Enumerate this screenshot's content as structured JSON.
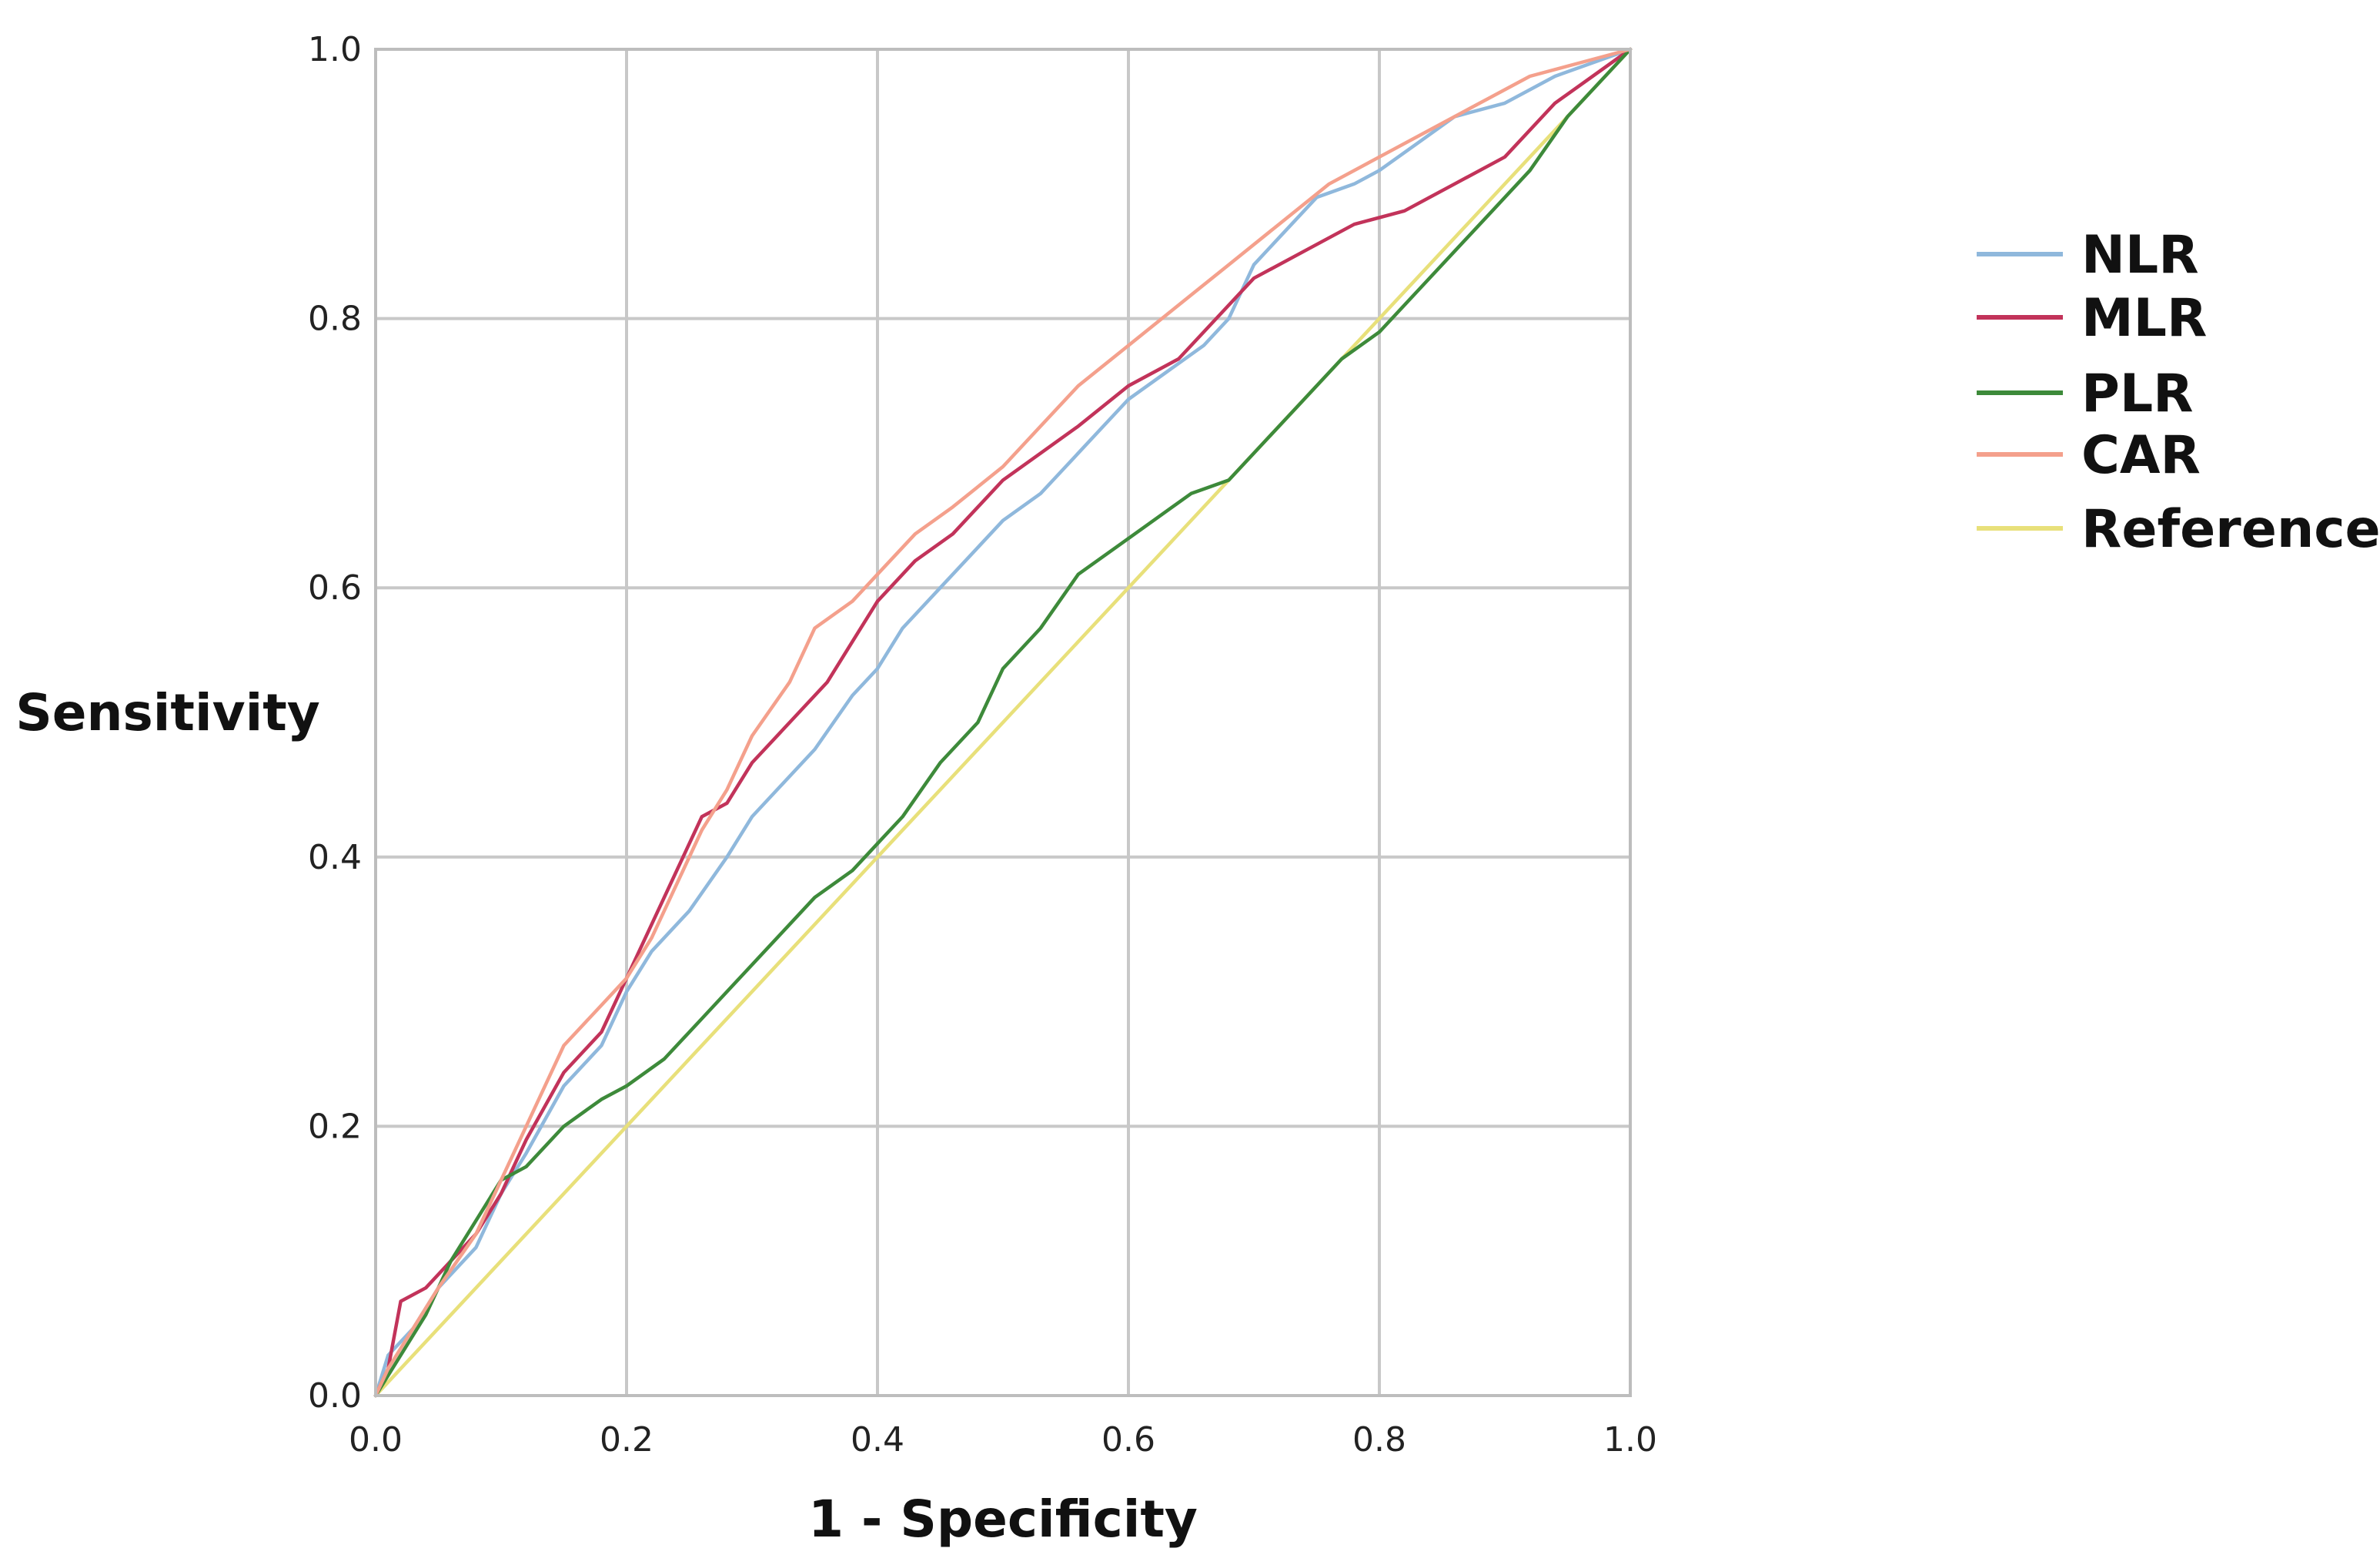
{
  "chart_data": {
    "type": "line",
    "xlabel": "1 - Specificity",
    "ylabel": "Sensitivity",
    "xlim": [
      0,
      1
    ],
    "ylim": [
      0,
      1
    ],
    "xticks": [
      "0.0",
      "0.2",
      "0.4",
      "0.6",
      "0.8",
      "1.0"
    ],
    "yticks": [
      "0.0",
      "0.2",
      "0.4",
      "0.6",
      "0.8",
      "1.0"
    ],
    "grid": true,
    "legend_position": "right",
    "series": [
      {
        "name": "NLR",
        "color": "#8fb8dc",
        "x": [
          0,
          0.01,
          0.03,
          0.05,
          0.08,
          0.1,
          0.12,
          0.15,
          0.18,
          0.2,
          0.22,
          0.25,
          0.28,
          0.3,
          0.32,
          0.35,
          0.38,
          0.4,
          0.42,
          0.45,
          0.48,
          0.5,
          0.53,
          0.55,
          0.58,
          0.6,
          0.63,
          0.66,
          0.68,
          0.7,
          0.72,
          0.75,
          0.78,
          0.8,
          0.83,
          0.86,
          0.9,
          0.94,
          0.97,
          1.0
        ],
        "y": [
          0,
          0.03,
          0.05,
          0.08,
          0.11,
          0.15,
          0.18,
          0.23,
          0.26,
          0.3,
          0.33,
          0.36,
          0.4,
          0.43,
          0.45,
          0.48,
          0.52,
          0.54,
          0.57,
          0.6,
          0.63,
          0.65,
          0.67,
          0.69,
          0.72,
          0.74,
          0.76,
          0.78,
          0.8,
          0.84,
          0.86,
          0.89,
          0.9,
          0.91,
          0.93,
          0.95,
          0.96,
          0.98,
          0.99,
          1.0
        ]
      },
      {
        "name": "MLR",
        "color": "#c2335a",
        "x": [
          0,
          0.01,
          0.02,
          0.04,
          0.06,
          0.08,
          0.1,
          0.12,
          0.15,
          0.18,
          0.2,
          0.22,
          0.24,
          0.26,
          0.28,
          0.3,
          0.33,
          0.36,
          0.38,
          0.4,
          0.43,
          0.46,
          0.5,
          0.53,
          0.56,
          0.6,
          0.64,
          0.67,
          0.7,
          0.74,
          0.78,
          0.82,
          0.86,
          0.9,
          0.94,
          0.97,
          1.0
        ],
        "y": [
          0,
          0.02,
          0.07,
          0.08,
          0.1,
          0.12,
          0.15,
          0.19,
          0.24,
          0.27,
          0.31,
          0.35,
          0.39,
          0.43,
          0.44,
          0.47,
          0.5,
          0.53,
          0.56,
          0.59,
          0.62,
          0.64,
          0.68,
          0.7,
          0.72,
          0.75,
          0.77,
          0.8,
          0.83,
          0.85,
          0.87,
          0.88,
          0.9,
          0.92,
          0.96,
          0.98,
          1.0
        ]
      },
      {
        "name": "PLR",
        "color": "#3d8a3a",
        "x": [
          0,
          0.02,
          0.04,
          0.06,
          0.08,
          0.1,
          0.12,
          0.15,
          0.18,
          0.2,
          0.23,
          0.26,
          0.29,
          0.32,
          0.35,
          0.38,
          0.4,
          0.42,
          0.45,
          0.48,
          0.5,
          0.53,
          0.56,
          0.59,
          0.62,
          0.65,
          0.68,
          0.71,
          0.74,
          0.77,
          0.8,
          0.83,
          0.86,
          0.89,
          0.92,
          0.95,
          0.98,
          1.0
        ],
        "y": [
          0,
          0.03,
          0.06,
          0.1,
          0.13,
          0.16,
          0.17,
          0.2,
          0.22,
          0.23,
          0.25,
          0.28,
          0.31,
          0.34,
          0.37,
          0.39,
          0.41,
          0.43,
          0.47,
          0.5,
          0.54,
          0.57,
          0.61,
          0.63,
          0.65,
          0.67,
          0.68,
          0.71,
          0.74,
          0.77,
          0.79,
          0.82,
          0.85,
          0.88,
          0.91,
          0.95,
          0.98,
          1.0
        ]
      },
      {
        "name": "CAR",
        "color": "#f4a08c",
        "x": [
          0,
          0.01,
          0.03,
          0.05,
          0.08,
          0.1,
          0.12,
          0.15,
          0.18,
          0.2,
          0.22,
          0.24,
          0.26,
          0.28,
          0.3,
          0.33,
          0.35,
          0.38,
          0.4,
          0.43,
          0.46,
          0.5,
          0.53,
          0.56,
          0.6,
          0.64,
          0.68,
          0.72,
          0.76,
          0.8,
          0.84,
          0.88,
          0.92,
          0.96,
          1.0
        ],
        "y": [
          0,
          0.02,
          0.05,
          0.08,
          0.12,
          0.16,
          0.2,
          0.26,
          0.29,
          0.31,
          0.34,
          0.38,
          0.42,
          0.45,
          0.49,
          0.53,
          0.57,
          0.59,
          0.61,
          0.64,
          0.66,
          0.69,
          0.72,
          0.75,
          0.78,
          0.81,
          0.84,
          0.87,
          0.9,
          0.92,
          0.94,
          0.96,
          0.98,
          0.99,
          1.0
        ]
      },
      {
        "name": "Reference",
        "color": "#e8e07a",
        "x": [
          0,
          1
        ],
        "y": [
          0,
          1
        ]
      }
    ]
  }
}
